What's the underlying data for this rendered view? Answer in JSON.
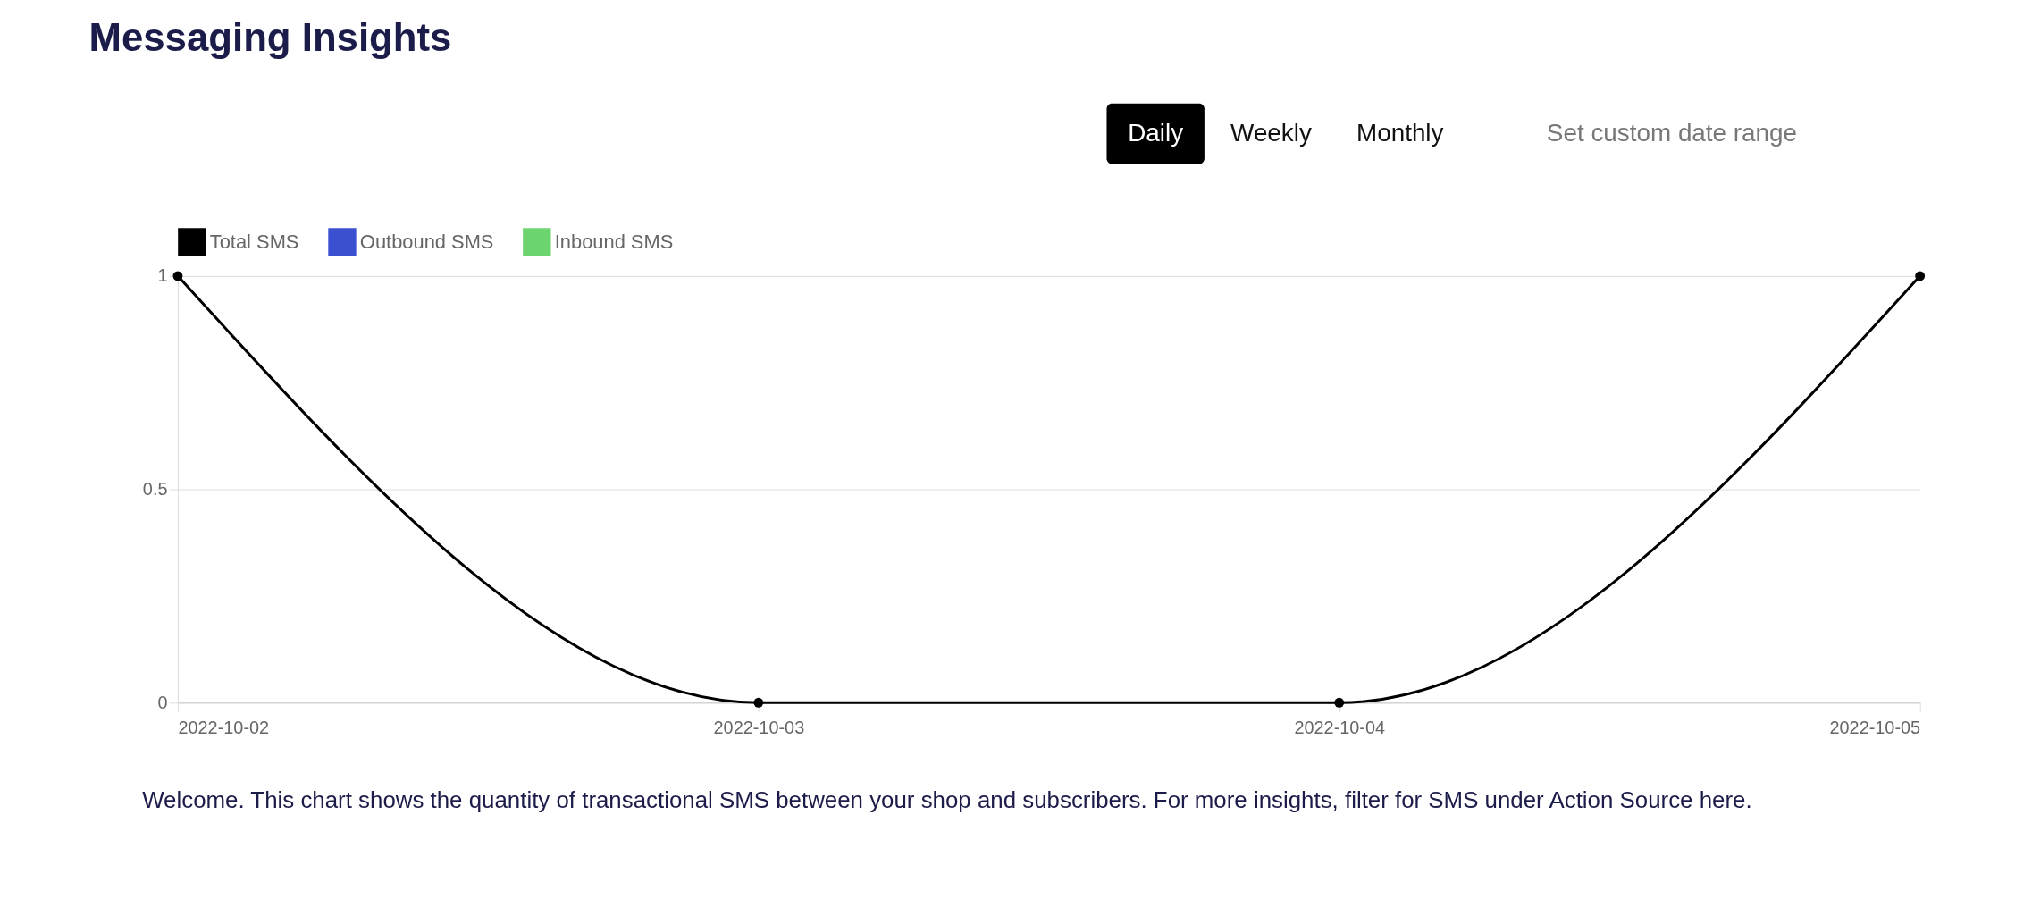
{
  "chart_data": {
    "type": "line",
    "title": "Messaging Insights",
    "x": [
      "2022-10-02",
      "2022-10-03",
      "2022-10-04",
      "2022-10-05"
    ],
    "series": [
      {
        "name": "Total SMS",
        "color": "#000000",
        "values": [
          1,
          0,
          0,
          1
        ]
      },
      {
        "name": "Outbound SMS",
        "color": "#3b4fd1",
        "values": [
          null,
          null,
          null,
          null
        ]
      },
      {
        "name": "Inbound SMS",
        "color": "#6cd46f",
        "values": [
          null,
          null,
          null,
          null
        ]
      }
    ],
    "xlim": [
      "2022-10-02",
      "2022-10-05"
    ],
    "xticks": [
      "2022-10-02",
      "2022-10-03",
      "2022-10-04",
      "2022-10-05"
    ],
    "ylim": [
      0,
      1
    ],
    "yticks": [
      0,
      0.5,
      1
    ],
    "grid": "y",
    "legend": "top",
    "marker": "circle",
    "line_style": "solid",
    "annotations": [
      "Daily",
      "Weekly",
      "Monthly",
      "Set custom date range",
      "Welcome. This chart shows the quantity of transactional SMS between your shop and subscribers. For more insights, filter for SMS under Action Source here."
    ]
  }
}
